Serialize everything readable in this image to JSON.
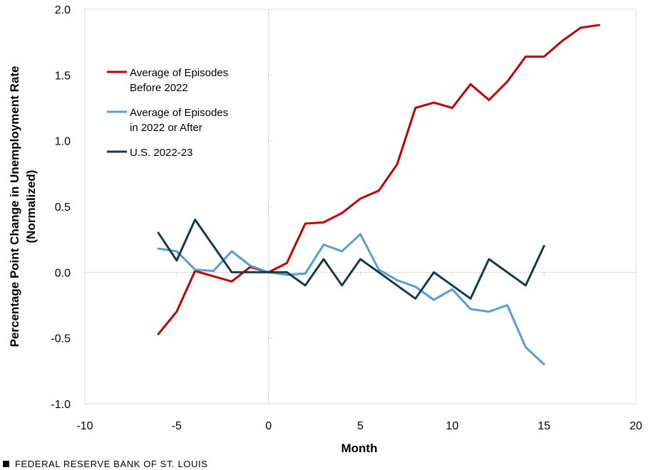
{
  "chart_data": {
    "type": "line",
    "title": "",
    "xlabel": "Month",
    "ylabel_line1": "Percentage Point Change in Unemployment Rate",
    "ylabel_line2": "(Normalized)",
    "xlim": [
      -10,
      20
    ],
    "ylim": [
      -1.0,
      2.0
    ],
    "xticks": [
      -10,
      -5,
      0,
      5,
      10,
      15,
      20
    ],
    "xtick_labels": [
      "-10",
      "-5",
      "0",
      "5",
      "10",
      "15",
      "20"
    ],
    "yticks": [
      -1.0,
      -0.5,
      0.0,
      0.5,
      1.0,
      1.5,
      2.0
    ],
    "ytick_labels": [
      "-1.0",
      "-0.5",
      "0.0",
      "0.5",
      "1.0",
      "1.5",
      "2.0"
    ],
    "grid": true,
    "legend_position": "top-left",
    "series": [
      {
        "name_line1": "Average of Episodes",
        "name_line2": "Before 2022",
        "color": "#C00000",
        "x": [
          -6,
          -5,
          -4,
          -3,
          -2,
          -1,
          0,
          1,
          2,
          3,
          4,
          5,
          6,
          7,
          8,
          9,
          10,
          11,
          12,
          13,
          14,
          15,
          16,
          17,
          18
        ],
        "y": [
          -0.47,
          -0.3,
          0.01,
          -0.03,
          -0.07,
          0.04,
          0.0,
          0.07,
          0.37,
          0.38,
          0.45,
          0.56,
          0.62,
          0.82,
          1.25,
          1.29,
          1.25,
          1.43,
          1.31,
          1.45,
          1.64,
          1.64,
          1.76,
          1.86,
          1.88
        ]
      },
      {
        "name_line1": "Average of Episodes",
        "name_line2": "in 2022 or After",
        "color": "#5B9BD5",
        "x": [
          -6,
          -5,
          -4,
          -3,
          -2,
          -1,
          0,
          1,
          2,
          3,
          4,
          5,
          6,
          7,
          8,
          9,
          10,
          11,
          12,
          13,
          14,
          15
        ],
        "y": [
          0.18,
          0.16,
          0.02,
          0.01,
          0.16,
          0.05,
          0.0,
          -0.02,
          -0.01,
          0.21,
          0.16,
          0.29,
          0.02,
          -0.06,
          -0.11,
          -0.21,
          -0.13,
          -0.28,
          -0.3,
          -0.25,
          -0.57,
          -0.7
        ]
      },
      {
        "name_line1": "U.S. 2022-23",
        "name_line2": "",
        "color": "#17394A",
        "x": [
          -6,
          -5,
          -4,
          -3,
          -2,
          -1,
          0,
          1,
          2,
          3,
          4,
          5,
          6,
          7,
          8,
          9,
          10,
          11,
          12,
          13,
          14,
          15
        ],
        "y": [
          0.3,
          0.09,
          0.4,
          0.2,
          0.0,
          0.0,
          0.0,
          0.0,
          -0.1,
          0.1,
          -0.1,
          0.1,
          0.0,
          -0.1,
          -0.2,
          0.0,
          -0.1,
          -0.2,
          0.1,
          0.0,
          -0.1,
          0.2
        ]
      }
    ]
  },
  "footer": {
    "source_text": "FEDERAL RESERVE BANK OF ST. LOUIS"
  }
}
